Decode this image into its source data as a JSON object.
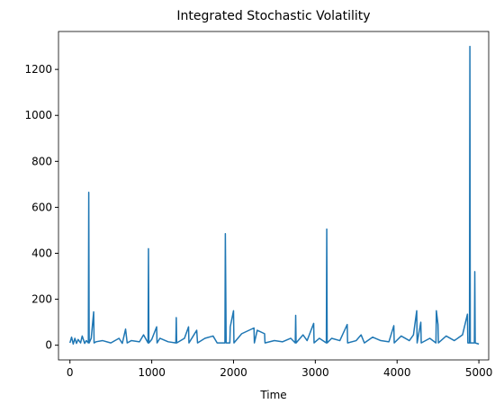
{
  "chart_data": {
    "type": "line",
    "title": "Integrated Stochastic Volatility",
    "x_label": "Time",
    "x": [
      0,
      20,
      40,
      60,
      80,
      100,
      130,
      150,
      180,
      200,
      225,
      230,
      235,
      260,
      290,
      295,
      320,
      400,
      500,
      600,
      640,
      680,
      700,
      750,
      850,
      900,
      955,
      960,
      965,
      1000,
      1060,
      1065,
      1100,
      1200,
      1295,
      1300,
      1305,
      1400,
      1450,
      1455,
      1550,
      1560,
      1650,
      1750,
      1800,
      1895,
      1900,
      1910,
      1955,
      1960,
      2000,
      2005,
      2100,
      2250,
      2255,
      2290,
      2380,
      2385,
      2500,
      2600,
      2700,
      2755,
      2760,
      2765,
      2850,
      2900,
      2980,
      2985,
      3050,
      3135,
      3140,
      3145,
      3200,
      3300,
      3390,
      3395,
      3500,
      3560,
      3600,
      3700,
      3800,
      3900,
      3960,
      3965,
      4050,
      4150,
      4200,
      4240,
      4245,
      4290,
      4295,
      4400,
      4475,
      4480,
      4500,
      4505,
      4600,
      4700,
      4800,
      4860,
      4865,
      4885,
      4890,
      4895,
      4945,
      4950,
      4955,
      5000
    ],
    "series": [
      {
        "color": "#1f77b4",
        "values": [
          10,
          35,
          5,
          30,
          8,
          25,
          10,
          40,
          8,
          20,
          10,
          665,
          10,
          30,
          145,
          10,
          15,
          20,
          10,
          30,
          8,
          70,
          10,
          20,
          15,
          45,
          10,
          420,
          10,
          25,
          80,
          10,
          30,
          15,
          10,
          120,
          10,
          30,
          80,
          10,
          65,
          10,
          30,
          40,
          10,
          10,
          485,
          10,
          10,
          80,
          150,
          10,
          50,
          75,
          10,
          65,
          50,
          10,
          20,
          15,
          30,
          10,
          130,
          10,
          45,
          20,
          95,
          10,
          30,
          10,
          505,
          10,
          30,
          20,
          90,
          10,
          20,
          45,
          10,
          35,
          20,
          15,
          85,
          10,
          40,
          20,
          45,
          150,
          10,
          100,
          10,
          30,
          10,
          150,
          90,
          10,
          40,
          20,
          45,
          135,
          10,
          10,
          1300,
          10,
          10,
          320,
          10,
          5
        ]
      }
    ],
    "xlim": [
      -140,
      5120
    ],
    "ylim": [
      -64,
      1365
    ],
    "xticks": [
      0,
      1000,
      2000,
      3000,
      4000,
      5000
    ],
    "yticks": [
      0,
      200,
      400,
      600,
      800,
      1000,
      1200
    ]
  }
}
